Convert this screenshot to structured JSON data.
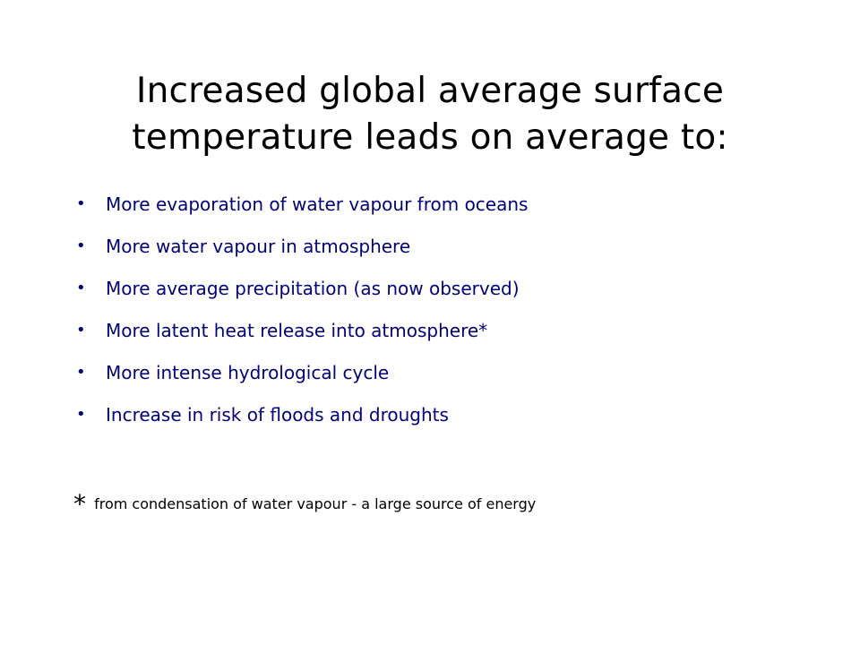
{
  "slide": {
    "title_line1": "Increased global average surface",
    "title_line2": "temperature leads on average to:",
    "bullet_glyph": "•",
    "bullets": [
      "More evaporation of water vapour from oceans",
      "More water vapour in atmosphere",
      "More average precipitation (as now observed)",
      "More latent heat release into atmosphere*",
      "More  intense hydrological cycle",
      "Increase in risk of floods and droughts"
    ],
    "footnote_marker": "*",
    "footnote_text": "from condensation of water vapour - a large source of energy",
    "colors": {
      "title": "#000000",
      "bullets": "#000080",
      "footnote": "#000000",
      "background": "#ffffff"
    }
  }
}
